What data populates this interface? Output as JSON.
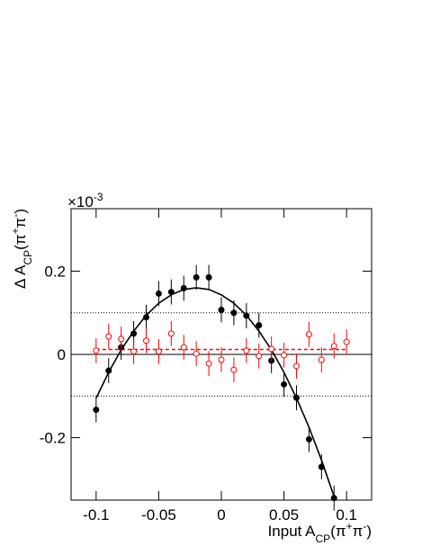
{
  "chart_data": {
    "type": "scatter",
    "multiplier": [
      {
        "text": "×10"
      },
      {
        "text": "-3",
        "shift": "super"
      }
    ],
    "xlabel": [
      {
        "text": "Input A"
      },
      {
        "text": "CP",
        "shift": "sub"
      },
      {
        "text": "(π"
      },
      {
        "text": "+",
        "shift": "super"
      },
      {
        "text": "π"
      },
      {
        "text": "-",
        "shift": "super"
      },
      {
        "text": ")"
      }
    ],
    "ylabel": [
      {
        "text": "Δ A"
      },
      {
        "text": "CP",
        "shift": "sub"
      },
      {
        "text": "(π"
      },
      {
        "text": "+",
        "shift": "super"
      },
      {
        "text": "π"
      },
      {
        "text": "-",
        "shift": "super"
      },
      {
        "text": ")"
      }
    ],
    "xlim": [
      -0.12,
      0.12
    ],
    "ylim": [
      -0.35,
      0.35
    ],
    "xticks": [
      -0.1,
      -0.05,
      0,
      0.05,
      0.1
    ],
    "yticks": [
      -0.2,
      0,
      0.2
    ],
    "reference_lines": [
      {
        "y": 0.1,
        "style": "dotted"
      },
      {
        "y": 0,
        "style": "solid"
      },
      {
        "y": -0.1,
        "style": "dotted"
      }
    ],
    "series": [
      {
        "color": "#000000",
        "marker": "filled",
        "x": [
          -0.1,
          -0.09,
          -0.08,
          -0.07,
          -0.06,
          -0.05,
          -0.04,
          -0.03,
          -0.02,
          -0.01,
          0,
          0.01,
          0.02,
          0.03,
          0.04,
          0.05,
          0.06,
          0.07,
          0.08,
          0.09
        ],
        "values": [
          -0.133,
          -0.039,
          0.017,
          0.05,
          0.089,
          0.146,
          0.15,
          0.159,
          0.185,
          0.185,
          0.107,
          0.1,
          0.093,
          0.07,
          -0.015,
          -0.072,
          -0.104,
          -0.204,
          -0.27,
          -0.345
        ],
        "errors": [
          0.03,
          0.03,
          0.03,
          0.03,
          0.03,
          0.03,
          0.03,
          0.03,
          0.03,
          0.03,
          0.03,
          0.03,
          0.03,
          0.03,
          0.03,
          0.03,
          0.03,
          0.03,
          0.03,
          0.03
        ]
      },
      {
        "color": "#ff0000",
        "marker": "open",
        "x": [
          -0.1,
          -0.09,
          -0.08,
          -0.07,
          -0.06,
          -0.05,
          -0.04,
          -0.03,
          -0.02,
          -0.01,
          0,
          0.01,
          0.02,
          0.03,
          0.04,
          0.05,
          0.06,
          0.07,
          0.08,
          0.09,
          0.1
        ],
        "values": [
          0.009,
          0.043,
          0.037,
          0.007,
          0.033,
          0.007,
          0.05,
          0.017,
          0.002,
          -0.022,
          -0.013,
          -0.037,
          0.009,
          -0.004,
          0.013,
          -0.002,
          -0.028,
          0.048,
          -0.013,
          0.02,
          0.03
        ],
        "errors": [
          0.03,
          0.03,
          0.03,
          0.03,
          0.03,
          0.03,
          0.03,
          0.03,
          0.03,
          0.03,
          0.03,
          0.03,
          0.03,
          0.03,
          0.03,
          0.03,
          0.03,
          0.03,
          0.03,
          0.03,
          0.03
        ]
      }
    ],
    "curves": [
      {
        "color": "#000000",
        "dashed": false,
        "x": [
          -0.1,
          -0.09,
          -0.08,
          -0.07,
          -0.06,
          -0.05,
          -0.04,
          -0.03,
          -0.02,
          -0.01,
          0,
          0.01,
          0.02,
          0.03,
          0.04,
          0.05,
          0.06,
          0.07,
          0.08,
          0.09
        ],
        "values": [
          -0.105,
          -0.043,
          0.011,
          0.056,
          0.094,
          0.123,
          0.143,
          0.156,
          0.16,
          0.156,
          0.143,
          0.123,
          0.094,
          0.056,
          0.011,
          -0.043,
          -0.105,
          -0.175,
          -0.254,
          -0.341
        ]
      },
      {
        "color": "#ff0000",
        "dashed": true,
        "x": [
          -0.1,
          0.1
        ],
        "values": [
          0.012,
          0.012
        ]
      }
    ]
  }
}
